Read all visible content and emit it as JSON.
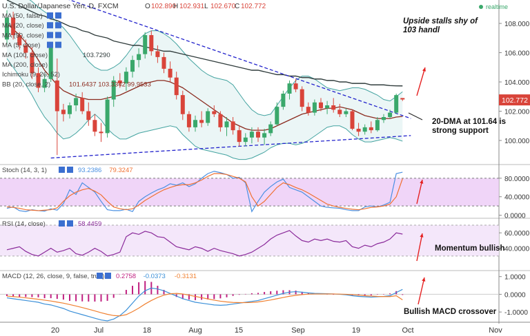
{
  "header": {
    "symbol": "U.S. Dollar/Japanese Yen, D, FXCM",
    "open_label": "O",
    "open": "102.890",
    "high_label": "H",
    "high": "102.931",
    "low_label": "L",
    "low": "102.670",
    "close_label": "C",
    "close": "102.772",
    "realtime": "realtime"
  },
  "indicators": [
    {
      "label": "MA (50, false)",
      "value": ""
    },
    {
      "label": "MA (20, close)",
      "value": ""
    },
    {
      "label": "MA (50, close)",
      "value": ""
    },
    {
      "label": "MA (5, close)",
      "value": ""
    },
    {
      "label": "MA (100, close)",
      "value": "103.7290"
    },
    {
      "label": "MA (200, close)",
      "value": ""
    },
    {
      "label": "Ichimoku (9, 26, 52)",
      "value": ""
    },
    {
      "label": "BB (20, close, 2)",
      "value": "101.6437   103.3342   99.9533"
    }
  ],
  "annotations": {
    "upside": "Upside stalls shy of 103 handl",
    "dma": "20-DMA at 101.64 is strong support",
    "momentum": "Momentum bullish",
    "macd": "Bullish MACD crossover"
  },
  "price_badge": "102.772",
  "colors": {
    "candle_up": "#3aa86b",
    "candle_down": "#d9443a",
    "ma20": "#8b2b1f",
    "ma100": "#2f3b3b",
    "bb": "#43a3a0",
    "trend": "#2222cc",
    "stoch_k": "#4a90e2",
    "stoch_d": "#f07030",
    "stoch_fill": "#eccaf6",
    "rsi": "#8a2a9a",
    "rsi_fill": "#f3e4fa",
    "macd_line": "#3a8fd8",
    "signal_line": "#f08030",
    "hist": "#c02080",
    "arrow": "#e52020"
  },
  "chart_data": [
    {
      "type": "candlestick",
      "title": "U.S. Dollar/Japanese Yen, D, FXCM",
      "ylim": [
        98.4,
        109.6
      ],
      "y_ticks": [
        "100.000",
        "102.000",
        "104.000",
        "106.000",
        "108.000"
      ],
      "x_ticks": [
        "20",
        "Jul",
        "18",
        "Aug",
        "15",
        "Sep",
        "19",
        "Oct",
        "Nov"
      ],
      "candles": [
        [
          106.9,
          108.9,
          106.5,
          108.4
        ],
        [
          108.4,
          108.8,
          106.9,
          107.2
        ],
        [
          107.2,
          107.4,
          106.2,
          106.5
        ],
        [
          106.5,
          106.9,
          105.6,
          106.0
        ],
        [
          106.0,
          106.4,
          104.2,
          104.6
        ],
        [
          104.6,
          105.0,
          103.3,
          103.6
        ],
        [
          103.6,
          104.5,
          103.3,
          104.2
        ],
        [
          104.2,
          106.6,
          104.0,
          106.4
        ],
        [
          104.1,
          105.6,
          99.0,
          102.0
        ],
        [
          102.1,
          102.5,
          101.3,
          101.8
        ],
        [
          101.8,
          102.6,
          101.5,
          102.4
        ],
        [
          102.4,
          103.2,
          102.0,
          102.9
        ],
        [
          102.9,
          103.3,
          101.8,
          102.0
        ],
        [
          102.0,
          102.6,
          101.0,
          101.4
        ],
        [
          101.4,
          101.8,
          100.3,
          100.6
        ],
        [
          100.6,
          101.2,
          99.9,
          100.5
        ],
        [
          100.5,
          103.0,
          100.2,
          102.8
        ],
        [
          102.8,
          104.4,
          102.3,
          104.1
        ],
        [
          104.1,
          104.6,
          103.6,
          103.9
        ],
        [
          103.9,
          105.0,
          103.4,
          104.7
        ],
        [
          104.7,
          105.8,
          104.3,
          105.5
        ],
        [
          105.5,
          106.3,
          105.0,
          105.9
        ],
        [
          105.9,
          107.4,
          105.6,
          107.2
        ],
        [
          107.2,
          107.5,
          105.8,
          106.1
        ],
        [
          106.1,
          106.5,
          105.3,
          105.7
        ],
        [
          105.7,
          106.0,
          104.6,
          104.9
        ],
        [
          104.9,
          105.4,
          104.0,
          104.3
        ],
        [
          104.3,
          104.7,
          102.8,
          103.1
        ],
        [
          103.1,
          103.4,
          101.4,
          101.8
        ],
        [
          101.8,
          102.0,
          100.6,
          100.9
        ],
        [
          100.9,
          101.7,
          100.6,
          101.4
        ],
        [
          101.4,
          102.0,
          100.9,
          101.2
        ],
        [
          101.2,
          102.2,
          101.0,
          102.0
        ],
        [
          102.0,
          102.4,
          101.6,
          101.8
        ],
        [
          101.8,
          102.0,
          100.6,
          100.9
        ],
        [
          100.9,
          101.6,
          100.3,
          101.3
        ],
        [
          101.3,
          101.6,
          100.4,
          100.7
        ],
        [
          100.7,
          101.0,
          99.6,
          99.9
        ],
        [
          99.9,
          100.5,
          99.6,
          100.2
        ],
        [
          100.2,
          100.9,
          99.8,
          100.6
        ],
        [
          100.6,
          100.9,
          99.9,
          100.2
        ],
        [
          100.2,
          100.8,
          99.7,
          100.5
        ],
        [
          100.5,
          101.3,
          100.3,
          101.1
        ],
        [
          101.1,
          102.6,
          101.0,
          102.3
        ],
        [
          102.3,
          103.4,
          102.1,
          103.2
        ],
        [
          103.2,
          104.1,
          102.8,
          103.9
        ],
        [
          103.9,
          104.2,
          103.3,
          103.5
        ],
        [
          103.5,
          103.7,
          102.0,
          102.3
        ],
        [
          102.3,
          102.6,
          101.7,
          101.9
        ],
        [
          101.9,
          102.8,
          101.7,
          102.6
        ],
        [
          102.6,
          102.9,
          102.0,
          102.2
        ],
        [
          102.2,
          102.7,
          101.8,
          102.4
        ],
        [
          102.4,
          102.9,
          101.9,
          102.1
        ],
        [
          102.1,
          102.5,
          101.6,
          101.8
        ],
        [
          101.8,
          102.2,
          101.6,
          102.0
        ],
        [
          102.0,
          102.1,
          100.7,
          100.8
        ],
        [
          100.8,
          101.2,
          100.3,
          100.6
        ],
        [
          100.6,
          101.1,
          100.4,
          100.9
        ],
        [
          100.9,
          101.3,
          100.5,
          100.7
        ],
        [
          100.7,
          101.6,
          100.6,
          101.4
        ],
        [
          101.4,
          101.8,
          101.2,
          101.6
        ],
        [
          101.6,
          102.1,
          101.5,
          101.9
        ],
        [
          101.9,
          103.2,
          101.8,
          103.1
        ],
        [
          102.9,
          102.9,
          102.7,
          102.8
        ]
      ],
      "ma20": [
        108.0,
        107.6,
        107.2,
        106.7,
        106.2,
        105.5,
        104.8,
        104.3,
        103.8,
        103.4,
        103.2,
        103.0,
        102.9,
        102.8,
        102.8,
        102.8,
        102.9,
        103.0,
        103.1,
        103.3,
        103.5,
        103.7,
        103.9,
        104.0,
        104.1,
        104.1,
        104.0,
        103.8,
        103.6,
        103.3,
        103.0,
        102.7,
        102.4,
        102.1,
        101.8,
        101.5,
        101.2,
        101.0,
        100.8,
        100.7,
        100.7,
        100.7,
        100.8,
        101.0,
        101.2,
        101.4,
        101.6,
        101.8,
        101.9,
        102.0,
        102.1,
        102.2,
        102.2,
        102.3,
        102.2,
        102.1,
        101.9,
        101.7,
        101.6,
        101.5,
        101.5,
        101.5,
        101.6,
        101.64
      ],
      "ma100": [
        109.6,
        109.4,
        109.2,
        109.0,
        108.8,
        108.6,
        108.5,
        108.3,
        108.2,
        108.0,
        107.8,
        107.7,
        107.5,
        107.4,
        107.2,
        107.1,
        107.0,
        106.8,
        106.7,
        106.6,
        106.5,
        106.5,
        106.4,
        106.3,
        106.2,
        106.1,
        106.1,
        106.0,
        105.9,
        105.8,
        105.7,
        105.6,
        105.5,
        105.4,
        105.3,
        105.2,
        105.1,
        105.0,
        104.9,
        104.8,
        104.8,
        104.7,
        104.6,
        104.5,
        104.5,
        104.4,
        104.4,
        104.3,
        104.3,
        104.2,
        104.2,
        104.1,
        104.1,
        104.0,
        104.0,
        103.9,
        103.9,
        103.9,
        103.8,
        103.8,
        103.8,
        103.75,
        103.73,
        103.729
      ],
      "bb_upper": [
        110.0,
        110.0,
        110.0,
        109.8,
        109.5,
        109.1,
        108.8,
        108.5,
        108.1,
        107.7,
        107.2,
        106.6,
        106.0,
        105.4,
        105.0,
        104.8,
        104.8,
        105.0,
        105.3,
        105.8,
        106.4,
        106.9,
        107.3,
        107.5,
        107.5,
        107.3,
        107.0,
        106.6,
        106.1,
        105.6,
        105.2,
        104.8,
        104.5,
        104.3,
        104.2,
        104.1,
        103.8,
        103.2,
        102.6,
        102.1,
        101.8,
        101.7,
        101.8,
        102.4,
        103.0,
        103.6,
        104.1,
        104.4,
        104.4,
        104.2,
        103.9,
        103.6,
        103.5,
        103.4,
        103.5,
        103.6,
        103.6,
        103.5,
        103.3,
        103.1,
        102.8,
        102.7,
        103.0,
        103.33
      ],
      "bb_lower": [
        105.6,
        105.0,
        104.4,
        103.8,
        103.1,
        102.3,
        101.6,
        101.1,
        100.5,
        100.1,
        100.2,
        100.5,
        100.9,
        101.4,
        101.8,
        101.4,
        100.8,
        100.4,
        100.1,
        100.1,
        100.3,
        100.5,
        100.6,
        100.7,
        100.8,
        100.9,
        101.0,
        100.9,
        100.4,
        100.0,
        99.6,
        99.4,
        99.3,
        99.2,
        99.1,
        99.0,
        98.8,
        98.7,
        98.7,
        98.8,
        99.0,
        99.2,
        99.5,
        99.7,
        99.8,
        99.8,
        99.7,
        99.8,
        100.0,
        100.3,
        100.6,
        100.9,
        101.0,
        101.0,
        100.8,
        100.4,
        100.1,
        99.9,
        99.9,
        100.0,
        100.1,
        100.2,
        100.1,
        99.95
      ],
      "trend_upper": [
        [
          2,
          110.8
        ],
        [
          63,
          101.7
        ]
      ],
      "trend_lower": [
        [
          7,
          98.8
        ],
        [
          63,
          100.3
        ]
      ]
    },
    {
      "type": "line",
      "title": "Stoch (14, 3, 1)",
      "ylim": [
        -5,
        108
      ],
      "bands": [
        20,
        80
      ],
      "y_ticks": [
        "0.0000",
        "40.0000",
        "80.0000"
      ],
      "values_label": [
        "93.2386",
        "79.3247"
      ],
      "series": [
        {
          "values": [
            15,
            18,
            10,
            8,
            12,
            10,
            9,
            14,
            11,
            25,
            55,
            45,
            70,
            60,
            50,
            30,
            12,
            10,
            10,
            13,
            8,
            30,
            40,
            48,
            55,
            60,
            68,
            65,
            70,
            62,
            68,
            80,
            90,
            95,
            92,
            88,
            80,
            82,
            70,
            8,
            30,
            50,
            62,
            72,
            78,
            60,
            55,
            50,
            40,
            30,
            20,
            17,
            16,
            15,
            12,
            10,
            10,
            18,
            20,
            18,
            22,
            28,
            90,
            93
          ]
        },
        {
          "values": [
            18,
            17,
            15,
            12,
            11,
            10,
            11,
            12,
            16,
            30,
            42,
            50,
            55,
            58,
            52,
            44,
            30,
            18,
            14,
            12,
            14,
            22,
            32,
            40,
            48,
            55,
            60,
            64,
            66,
            66,
            70,
            76,
            84,
            90,
            90,
            88,
            84,
            80,
            72,
            40,
            20,
            30,
            45,
            60,
            70,
            66,
            60,
            55,
            48,
            40,
            32,
            24,
            20,
            17,
            15,
            13,
            12,
            14,
            17,
            18,
            20,
            24,
            40,
            79
          ]
        }
      ]
    },
    {
      "type": "line",
      "title": "RSI (14, close)",
      "ylim": [
        12,
        78
      ],
      "bands": [
        30,
        70
      ],
      "y_ticks": [
        "40.0000",
        "60.0000"
      ],
      "values_label": [
        "58.4459"
      ],
      "series": [
        {
          "values": [
            38,
            40,
            42,
            36,
            32,
            30,
            35,
            40,
            35,
            37,
            40,
            33,
            31,
            35,
            40,
            36,
            30,
            32,
            35,
            55,
            60,
            58,
            62,
            60,
            55,
            54,
            48,
            42,
            40,
            38,
            42,
            40,
            36,
            40,
            37,
            35,
            33,
            30,
            32,
            35,
            40,
            45,
            52,
            57,
            60,
            63,
            56,
            50,
            48,
            52,
            50,
            52,
            49,
            48,
            50,
            42,
            40,
            44,
            42,
            46,
            48,
            52,
            60,
            58.4
          ]
        }
      ]
    },
    {
      "type": "bar",
      "title": "MACD (12, 26, close, 9, false, true)",
      "ylim": [
        -1.5,
        1.3
      ],
      "y_ticks": [
        "-1.0000",
        "0.0000",
        "1.0000"
      ],
      "values_label": [
        "0.2758",
        "-0.0373",
        "-0.3131"
      ],
      "series": [
        {
          "values": [
            -0.2,
            -0.25,
            -0.3,
            -0.35,
            -0.4,
            -0.45,
            -0.55,
            -0.6,
            -0.7,
            -0.8,
            -0.95,
            -1.05,
            -1.15,
            -1.25,
            -1.35,
            -1.45,
            -1.5,
            -1.4,
            -1.2,
            -0.9,
            -0.5,
            -0.1,
            0.2,
            0.35,
            0.3,
            0.2,
            0.05,
            -0.1,
            -0.25,
            -0.35,
            -0.45,
            -0.5,
            -0.55,
            -0.6,
            -0.62,
            -0.6,
            -0.55,
            -0.5,
            -0.45,
            -0.4,
            -0.35,
            -0.25,
            -0.15,
            -0.05,
            0.05,
            0.12,
            0.15,
            0.12,
            0.08,
            0.05,
            0.04,
            0.03,
            0.02,
            0.0,
            -0.03,
            -0.08,
            -0.12,
            -0.14,
            -0.16,
            -0.14,
            -0.12,
            -0.08,
            0.1,
            0.2758
          ]
        },
        {
          "values": [
            -0.1,
            -0.13,
            -0.16,
            -0.2,
            -0.24,
            -0.28,
            -0.33,
            -0.38,
            -0.44,
            -0.5,
            -0.58,
            -0.66,
            -0.75,
            -0.84,
            -0.94,
            -1.04,
            -1.13,
            -1.2,
            -1.22,
            -1.15,
            -0.98,
            -0.78,
            -0.55,
            -0.35,
            -0.18,
            -0.05,
            0.03,
            0.05,
            0.02,
            -0.05,
            -0.12,
            -0.19,
            -0.26,
            -0.33,
            -0.39,
            -0.43,
            -0.46,
            -0.47,
            -0.47,
            -0.46,
            -0.43,
            -0.38,
            -0.32,
            -0.25,
            -0.18,
            -0.11,
            -0.06,
            -0.02,
            0.01,
            0.02,
            0.02,
            0.02,
            0.02,
            0.01,
            0.0,
            -0.02,
            -0.05,
            -0.08,
            -0.1,
            -0.12,
            -0.13,
            -0.13,
            -0.08,
            -0.3131
          ]
        },
        {
          "values": [
            -0.1,
            -0.12,
            -0.14,
            -0.15,
            -0.16,
            -0.17,
            -0.22,
            -0.22,
            -0.26,
            -0.3,
            -0.37,
            -0.39,
            -0.4,
            -0.41,
            -0.41,
            -0.41,
            -0.37,
            -0.2,
            0.02,
            0.25,
            0.48,
            0.68,
            0.75,
            0.7,
            0.48,
            0.25,
            0.02,
            -0.15,
            -0.27,
            -0.3,
            -0.33,
            -0.31,
            -0.29,
            -0.27,
            -0.23,
            -0.17,
            -0.09,
            -0.03,
            0.02,
            0.06,
            0.08,
            0.13,
            0.17,
            0.2,
            0.23,
            0.23,
            0.21,
            0.14,
            0.07,
            0.03,
            0.02,
            0.01,
            0.0,
            -0.01,
            -0.03,
            -0.06,
            -0.07,
            -0.06,
            -0.06,
            -0.02,
            0.01,
            0.05,
            0.18,
            -0.0373
          ]
        }
      ]
    }
  ]
}
